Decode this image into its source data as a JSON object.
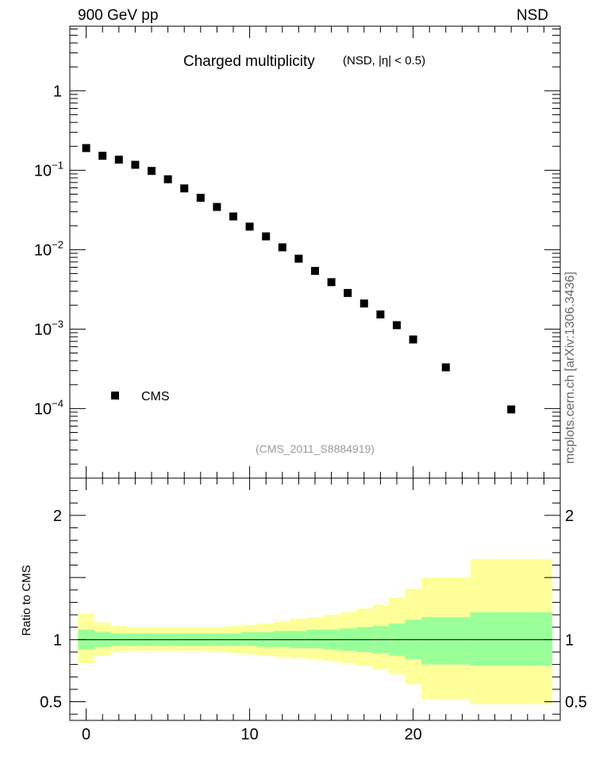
{
  "header": {
    "left": "900 GeV pp",
    "right": "NSD"
  },
  "side_label": "mcplots.cern.ch [arXiv:1306.3436]",
  "chart_data": [
    {
      "type": "scatter",
      "title": "Charged multiplicity",
      "subtitle": "(NSD, |η| < 0.5)",
      "reference": "(CMS_2011_S8884919)",
      "yscale": "log",
      "ylim": [
        1.33e-05,
        6.5
      ],
      "xlim": [
        -1,
        29
      ],
      "yticks": [
        {
          "value": 1,
          "base": "1",
          "exp": ""
        },
        {
          "value": 0.1,
          "base": "10",
          "exp": "−1"
        },
        {
          "value": 0.01,
          "base": "10",
          "exp": "−2"
        },
        {
          "value": 0.001,
          "base": "10",
          "exp": "−3"
        },
        {
          "value": 0.0001,
          "base": "10",
          "exp": "−4"
        }
      ],
      "legend": {
        "position": "bottom-left",
        "entries": [
          "CMS"
        ]
      },
      "series": [
        {
          "name": "CMS",
          "marker": "square",
          "color": "#000000",
          "x": [
            0,
            1,
            2,
            3,
            4,
            5,
            6,
            7,
            8,
            9,
            10,
            11,
            12,
            13,
            14,
            15,
            16,
            17,
            18,
            19,
            20,
            22,
            26
          ],
          "y": [
            0.19,
            0.152,
            0.136,
            0.117,
            0.098,
            0.077,
            0.059,
            0.045,
            0.0345,
            0.0262,
            0.0195,
            0.0147,
            0.0107,
            0.0077,
            0.0054,
            0.0039,
            0.00285,
            0.0021,
            0.00153,
            0.00112,
            0.00074,
            0.00033,
            9.75e-05
          ]
        }
      ]
    },
    {
      "type": "area",
      "ylabel": "Ratio to CMS",
      "ylim": [
        0.35,
        2.3
      ],
      "xlim": [
        -1,
        29
      ],
      "yticks": [
        "0.5",
        "1",
        "2"
      ],
      "xticks": [
        "0",
        "10",
        "20"
      ],
      "colors": {
        "inner_band": "#99ff99",
        "outer_band": "#ffff99"
      },
      "bins": [
        -0.5,
        0.5,
        1.5,
        2.5,
        3.5,
        4.5,
        5.5,
        6.5,
        7.5,
        8.5,
        9.5,
        10.5,
        11.5,
        12.5,
        13.5,
        14.5,
        15.5,
        16.5,
        17.5,
        18.5,
        19.5,
        20.5,
        23.5,
        28.5
      ],
      "inner_band": {
        "low": [
          0.92,
          0.94,
          0.95,
          0.95,
          0.95,
          0.95,
          0.95,
          0.95,
          0.95,
          0.95,
          0.95,
          0.94,
          0.94,
          0.93,
          0.93,
          0.92,
          0.91,
          0.9,
          0.89,
          0.87,
          0.84,
          0.8,
          0.79
        ],
        "high": [
          1.08,
          1.06,
          1.05,
          1.05,
          1.05,
          1.05,
          1.05,
          1.05,
          1.05,
          1.05,
          1.06,
          1.06,
          1.07,
          1.07,
          1.08,
          1.08,
          1.09,
          1.1,
          1.11,
          1.13,
          1.16,
          1.18,
          1.22
        ]
      },
      "outer_band": {
        "low": [
          0.81,
          0.87,
          0.9,
          0.91,
          0.91,
          0.91,
          0.91,
          0.91,
          0.9,
          0.89,
          0.88,
          0.87,
          0.86,
          0.85,
          0.84,
          0.83,
          0.81,
          0.79,
          0.76,
          0.72,
          0.64,
          0.52,
          0.48
        ],
        "high": [
          1.21,
          1.14,
          1.11,
          1.1,
          1.1,
          1.1,
          1.1,
          1.1,
          1.1,
          1.11,
          1.12,
          1.13,
          1.15,
          1.17,
          1.18,
          1.2,
          1.22,
          1.25,
          1.28,
          1.34,
          1.41,
          1.5,
          1.65
        ]
      }
    }
  ]
}
